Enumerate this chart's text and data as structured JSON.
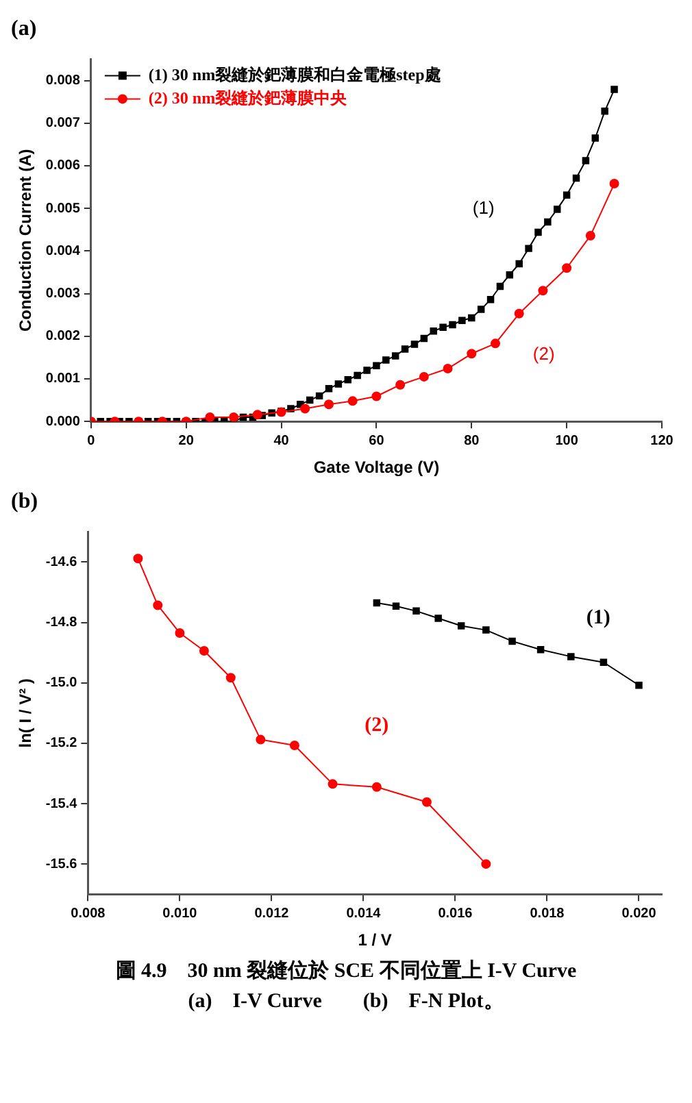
{
  "chart_data": [
    {
      "type": "line",
      "title": "(a)",
      "xlabel": "Gate Voltage (V)",
      "ylabel": "Conduction Current (A)",
      "xlim": [
        0,
        120
      ],
      "xticks": [
        0,
        20,
        40,
        60,
        80,
        100,
        120
      ],
      "ylim": [
        0,
        0.0085
      ],
      "yticks": [
        {
          "value": 0,
          "label": "0.000"
        },
        {
          "value": 0.001,
          "label": "0.001"
        },
        {
          "value": 0.002,
          "label": "0.002"
        },
        {
          "value": 0.003,
          "label": "0.003"
        },
        {
          "value": 0.004,
          "label": "0.004"
        },
        {
          "value": 0.005,
          "label": "0.005"
        },
        {
          "value": 0.006,
          "label": "0.006"
        },
        {
          "value": 0.007,
          "label": "0.007"
        },
        {
          "value": 0.008,
          "label": "0.008"
        }
      ],
      "grid": false,
      "legend": "top left",
      "annotations": [
        "(1)",
        "(2)"
      ],
      "series": [
        {
          "name": "(1) 30 nm裂縫於鈀薄膜和白金電極step處",
          "color": "#000000",
          "marker": "square",
          "x": [
            0,
            2,
            4,
            6,
            8,
            10,
            12,
            14,
            16,
            18,
            20,
            22,
            24,
            26,
            28,
            30,
            32,
            34,
            36,
            38,
            40,
            42,
            44,
            46,
            48,
            50,
            52,
            54,
            56,
            58,
            60,
            62,
            64,
            66,
            68,
            70,
            72,
            74,
            76,
            78,
            80,
            82,
            84,
            86,
            88,
            90,
            92,
            94,
            96,
            98,
            100,
            102,
            104,
            106,
            108,
            110
          ],
          "values": [
            0,
            0,
            0,
            0,
            0,
            0,
            0,
            0,
            0,
            0,
            0,
            0,
            0,
            0,
            0,
            0,
            0.0001,
            0.0001,
            0.00014,
            0.0002,
            0.00024,
            0.0003,
            0.0004,
            0.0005,
            0.0006,
            0.00077,
            0.00088,
            0.00098,
            0.00108,
            0.0012,
            0.00131,
            0.00144,
            0.00154,
            0.0017,
            0.00181,
            0.00195,
            0.00212,
            0.00221,
            0.00227,
            0.00237,
            0.00243,
            0.00263,
            0.00286,
            0.00317,
            0.00344,
            0.0037,
            0.00406,
            0.00444,
            0.00468,
            0.00498,
            0.00531,
            0.00571,
            0.00612,
            0.00665,
            0.00728,
            0.00779
          ]
        },
        {
          "name": "(2) 30 nm裂縫於鈀薄膜中央",
          "color": "#ff0000",
          "marker": "circle",
          "x": [
            0,
            5,
            10,
            15,
            20,
            25,
            30,
            35,
            40,
            45,
            50,
            55,
            60,
            65,
            70,
            75,
            80,
            85,
            90,
            95,
            100,
            105,
            110
          ],
          "values": [
            0,
            0,
            0,
            0,
            0,
            0.0001,
            0.0001,
            0.00016,
            0.00022,
            0.0003,
            0.0004,
            0.00048,
            0.00059,
            0.00086,
            0.00105,
            0.00124,
            0.00159,
            0.00183,
            0.00253,
            0.00307,
            0.0036,
            0.00436,
            0.00558
          ]
        }
      ]
    },
    {
      "type": "line",
      "title": "(b)",
      "xlabel": "1 / V",
      "ylabel": "ln( I / V² )",
      "xlim": [
        0.008,
        0.0205
      ],
      "xticks": [
        {
          "value": 0.008,
          "label": "0.008"
        },
        {
          "value": 0.01,
          "label": "0.010"
        },
        {
          "value": 0.012,
          "label": "0.012"
        },
        {
          "value": 0.014,
          "label": "0.014"
        },
        {
          "value": 0.016,
          "label": "0.016"
        },
        {
          "value": 0.018,
          "label": "0.018"
        },
        {
          "value": 0.02,
          "label": "0.020"
        }
      ],
      "ylim": [
        -15.7,
        -14.5
      ],
      "yticks": [
        -15.6,
        -15.4,
        {
          "value": -15.2,
          "label": "-15.2"
        },
        {
          "value": -15,
          "label": "-15.0"
        },
        {
          "value": -14.8,
          "label": "-14.8"
        },
        {
          "value": -14.6,
          "label": "-14.6"
        }
      ],
      "grid": false,
      "legend": false,
      "annotations": [
        "圖 4.9　30 nm 裂縫位於 SCE 不同位置上 I-V Curve",
        "(a)　I-V Curve　　(b)　F-N Plot。"
      ],
      "series": [
        {
          "name": "(1)",
          "color": "#000000",
          "marker": "square",
          "x": [
            0.01429,
            0.01471,
            0.01515,
            0.01563,
            0.01613,
            0.01667,
            0.01724,
            0.01786,
            0.01852,
            0.01923,
            0.02
          ],
          "values": [
            -14.735,
            -14.746,
            -14.762,
            -14.786,
            -14.811,
            -14.825,
            -14.862,
            -14.89,
            -14.913,
            -14.932,
            -15.008
          ]
        },
        {
          "name": "(2)",
          "color": "#ff0000",
          "marker": "circle",
          "x": [
            0.00909,
            0.00952,
            0.01,
            0.01053,
            0.01111,
            0.01176,
            0.0125,
            0.01333,
            0.01429,
            0.01538,
            0.01667
          ],
          "values": [
            -14.588,
            -14.743,
            -14.835,
            -14.894,
            -14.983,
            -15.188,
            -15.207,
            -15.335,
            -15.345,
            -15.395,
            -15.6
          ]
        }
      ]
    }
  ]
}
